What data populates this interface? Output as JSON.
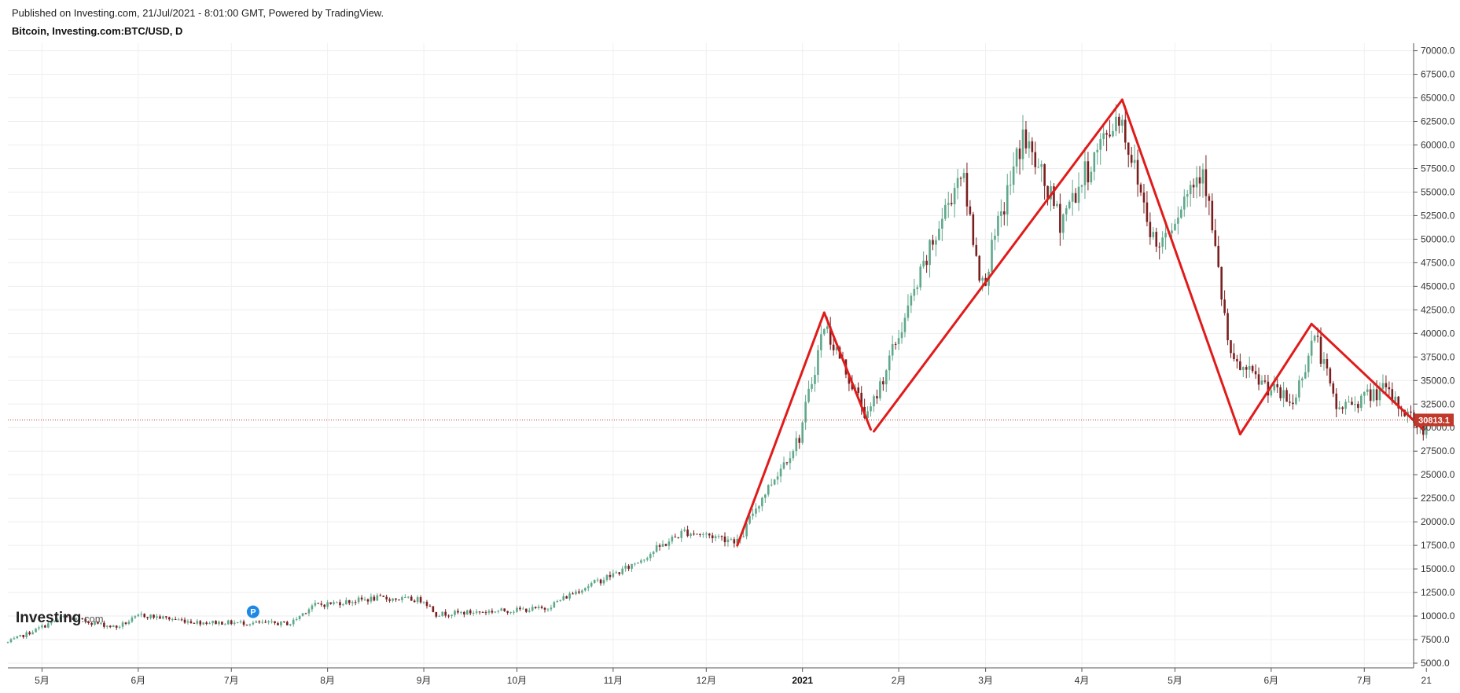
{
  "header": {
    "published": "Published on Investing.com, 21/Jul/2021 - 8:01:00 GMT, Powered by TradingView.",
    "title": "Bitcoin, Investing.com:BTC/USD, D"
  },
  "logo": {
    "text": "Investing",
    "suffix": ".com"
  },
  "colors": {
    "up": "#5fa88b",
    "down": "#7a1f1f",
    "pattern": "#e01b1b",
    "price_line": "#c0392b",
    "marker": "#1e88e5"
  },
  "chart_data": {
    "type": "candlestick",
    "x_ticks": [
      "5月",
      "6月",
      "7月",
      "8月",
      "9月",
      "10月",
      "11月",
      "12月",
      "2021",
      "2月",
      "3月",
      "4月",
      "5月",
      "6月",
      "7月",
      "21"
    ],
    "y_ticks": [
      "70000.0",
      "67500.0",
      "65000.0",
      "62500.0",
      "60000.0",
      "57500.0",
      "55000.0",
      "52500.0",
      "50000.0",
      "47500.0",
      "45000.0",
      "42500.0",
      "40000.0",
      "37500.0",
      "35000.0",
      "32500.0",
      "30000.0",
      "27500.0",
      "25000.0",
      "22500.0",
      "20000.0",
      "17500.0",
      "15000.0",
      "12500.0",
      "10000.0",
      "7500.0",
      "5000.0"
    ],
    "ylim": [
      4500,
      70800
    ],
    "last_price": "30813.1",
    "last_price_value": 30813.1,
    "event_marker": {
      "label": "P",
      "date": "2020-07-08",
      "value": 10450
    },
    "price_anchors": [
      [
        "2020-04-20",
        7200
      ],
      [
        "2020-05-08",
        9900
      ],
      [
        "2020-05-25",
        8800
      ],
      [
        "2020-06-02",
        10100
      ],
      [
        "2020-06-20",
        9350
      ],
      [
        "2020-07-20",
        9200
      ],
      [
        "2020-07-27",
        11100
      ],
      [
        "2020-08-17",
        11900
      ],
      [
        "2020-09-01",
        11700
      ],
      [
        "2020-09-05",
        10200
      ],
      [
        "2020-10-10",
        10800
      ],
      [
        "2020-10-21",
        12800
      ],
      [
        "2020-11-05",
        15000
      ],
      [
        "2020-11-24",
        19000
      ],
      [
        "2020-12-12",
        18000
      ],
      [
        "2020-12-16",
        21000
      ],
      [
        "2020-12-31",
        29000
      ],
      [
        "2021-01-08",
        41000
      ],
      [
        "2021-01-22",
        31000
      ],
      [
        "2021-02-08",
        46000
      ],
      [
        "2021-02-21",
        57500
      ],
      [
        "2021-02-28",
        45000
      ],
      [
        "2021-03-13",
        61000
      ],
      [
        "2021-03-25",
        52000
      ],
      [
        "2021-04-13",
        63500
      ],
      [
        "2021-04-25",
        49000
      ],
      [
        "2021-05-10",
        58000
      ],
      [
        "2021-05-19",
        37000
      ],
      [
        "2021-06-08",
        32500
      ],
      [
        "2021-06-15",
        40000
      ],
      [
        "2021-06-22",
        32000
      ],
      [
        "2021-07-07",
        34000
      ],
      [
        "2021-07-20",
        29800
      ],
      [
        "2021-07-21",
        30813
      ]
    ],
    "pattern_lines": [
      {
        "from": [
          "2020-12-11",
          17500
        ],
        "to": [
          "2021-01-08",
          42200
        ]
      },
      {
        "from": [
          "2021-01-08",
          42200
        ],
        "to": [
          "2021-01-23",
          29800
        ]
      },
      {
        "from": [
          "2021-01-24",
          29600
        ],
        "to": [
          "2021-04-14",
          64800
        ]
      },
      {
        "from": [
          "2021-04-14",
          64800
        ],
        "to": [
          "2021-05-22",
          29300
        ]
      },
      {
        "from": [
          "2021-05-22",
          29300
        ],
        "to": [
          "2021-06-14",
          41000
        ]
      },
      {
        "from": [
          "2021-06-14",
          41000
        ],
        "to": [
          "2021-07-20",
          29800
        ]
      }
    ]
  }
}
